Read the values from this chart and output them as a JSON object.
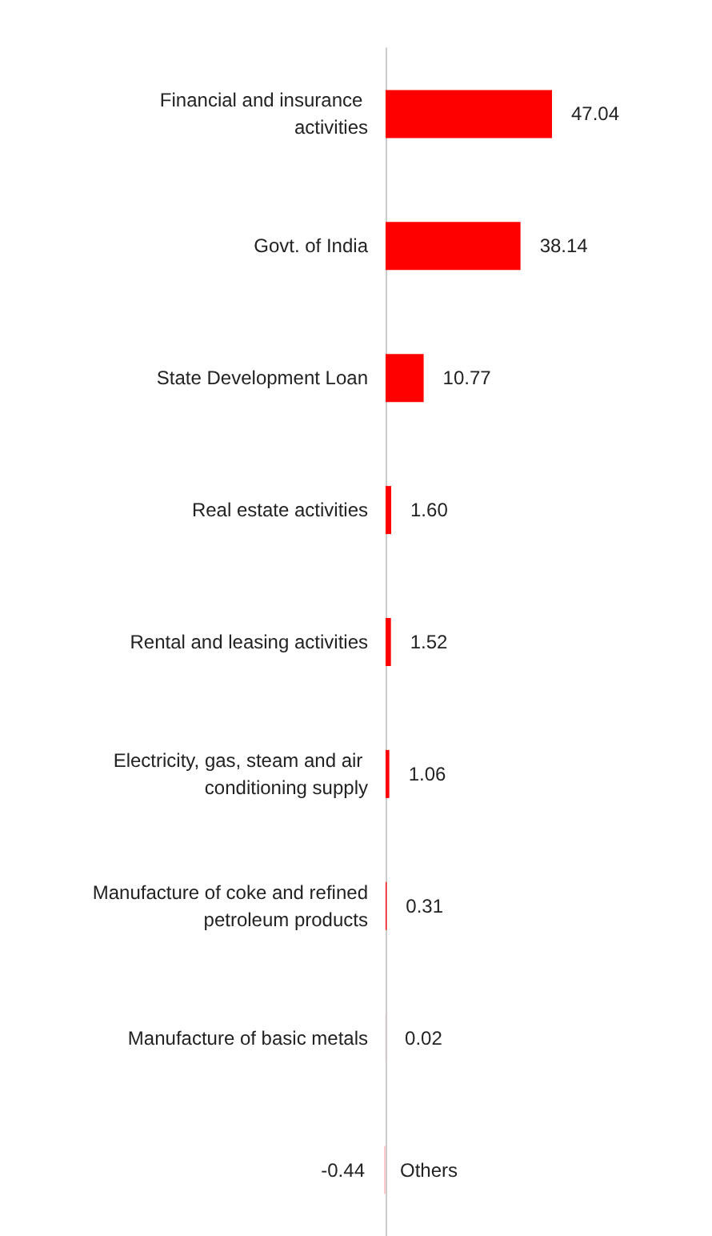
{
  "chart_data": {
    "type": "bar",
    "orientation": "horizontal",
    "categories": [
      "Financial and insurance activities",
      "Govt. of India",
      "State Development Loan",
      "Real estate activities",
      "Rental and leasing activities",
      "Electricity, gas, steam and air conditioning supply",
      "Manufacture of coke and refined petroleum products",
      "Manufacture of basic metals",
      "Others"
    ],
    "values": [
      47.04,
      38.14,
      10.77,
      1.6,
      1.52,
      1.06,
      0.31,
      0.02,
      -0.44
    ],
    "value_labels": [
      "47.04",
      "38.14",
      "10.77",
      "1.60",
      "1.52",
      "1.06",
      "0.31",
      "0.02",
      "-0.44"
    ],
    "colors": [
      "#ff0000",
      "#ff0000",
      "#ff0000",
      "#ff0000",
      "#ff0000",
      "#ff0000",
      "#ff0000",
      "#ff0000",
      "#ffc9cf"
    ],
    "data_labels": false
  }
}
